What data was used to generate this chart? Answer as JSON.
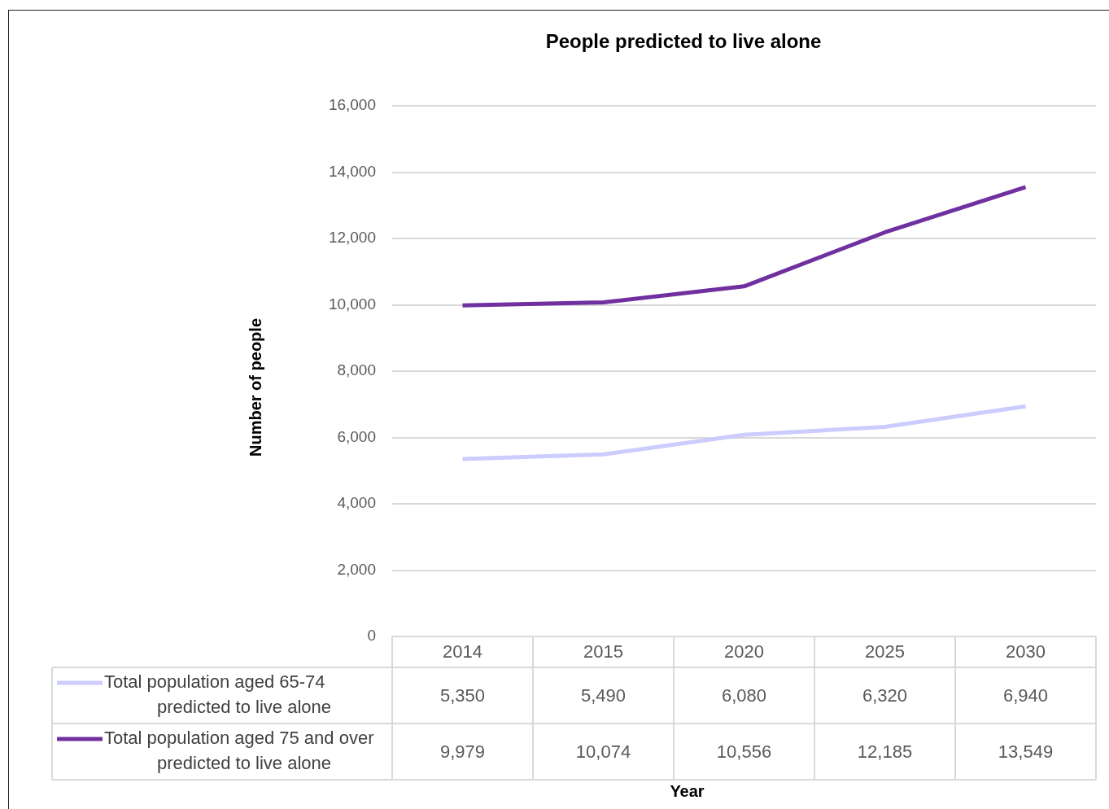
{
  "chart_data": {
    "type": "line",
    "title": "People predicted to live alone",
    "ylabel": "Number of people",
    "annotations": [
      "Year"
    ],
    "categories": [
      "2014",
      "2015",
      "2020",
      "2025",
      "2030"
    ],
    "series": [
      {
        "name": "Total population aged 65-74 predicted to live alone",
        "color": "#ccccff",
        "values": [
          5350,
          5490,
          6080,
          6320,
          6940
        ],
        "value_labels": [
          "5,350",
          "5,490",
          "6,080",
          "6,320",
          "6,940"
        ]
      },
      {
        "name": "Total population aged 75 and over predicted to live alone",
        "color": "#7030a0",
        "values": [
          9979,
          10074,
          10556,
          12185,
          13549
        ],
        "value_labels": [
          "9,979",
          "10,074",
          "10,556",
          "12,185",
          "13,549"
        ]
      }
    ],
    "ylim": [
      0,
      16000
    ],
    "yticks": [
      0,
      {
        "value": 2000,
        "label": "2,000"
      },
      {
        "value": 4000,
        "label": "4,000"
      },
      {
        "value": 6000,
        "label": "6,000"
      },
      {
        "value": 8000,
        "label": "8,000"
      },
      {
        "value": 10000,
        "label": "10,000"
      },
      {
        "value": 12000,
        "label": "12,000"
      },
      {
        "value": 14000,
        "label": "14,000"
      },
      {
        "value": 16000,
        "label": "16,000"
      }
    ],
    "grid": "y",
    "legend": "bottom",
    "marker": "none",
    "line_style": "solid"
  }
}
